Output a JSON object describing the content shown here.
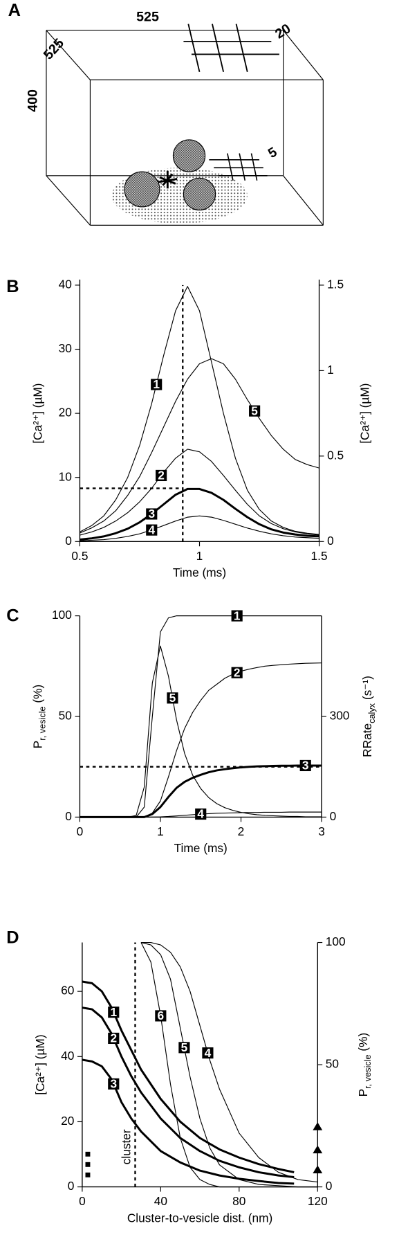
{
  "panel_a": {
    "letter": "A",
    "width_label": "525",
    "depth_label": "525",
    "height_label": "400",
    "grid_label": "20",
    "small_grid_label": "5"
  },
  "chart_data": [
    {
      "type": "line",
      "panel": "B",
      "x": [
        0.5,
        0.55,
        0.6,
        0.65,
        0.7,
        0.75,
        0.8,
        0.85,
        0.9,
        0.95,
        1,
        1.05,
        1.1,
        1.15,
        1.2,
        1.25,
        1.3,
        1.35,
        1.4,
        1.45,
        1.5
      ],
      "xlim": [
        0.5,
        1.5
      ],
      "xticks": [
        0.5,
        1,
        1.5
      ],
      "ylim": [
        0,
        40
      ],
      "yticks": [
        0,
        10,
        20,
        30,
        40
      ],
      "y2lim": [
        0,
        1.5
      ],
      "y2ticks": [
        0,
        0.5,
        1,
        1.5
      ],
      "xlabel": "Time (ms)",
      "ylabel": {
        "text": "[Ca²⁺] (µM)"
      },
      "y2label": {
        "text": "[Ca²⁺] (µM)"
      },
      "vline": 0.93,
      "hline": 8.3,
      "series": [
        {
          "name": "1",
          "color": "#000000",
          "width": 1,
          "values": [
            1.5,
            2.5,
            4,
            6.5,
            10,
            15,
            21.5,
            29,
            36,
            39.8,
            36,
            28,
            20,
            13,
            8,
            5,
            3.2,
            2.2,
            1.6,
            1.3,
            1.1
          ]
        },
        {
          "name": "2",
          "color": "#000000",
          "width": 1,
          "values": [
            1,
            1.5,
            2.2,
            3.2,
            4.5,
            6.2,
            8.3,
            10.8,
            13,
            14.4,
            14,
            12.5,
            10.3,
            8,
            5.8,
            4,
            2.8,
            2,
            1.5,
            1.2,
            1
          ]
        },
        {
          "name": "3",
          "color": "#000000",
          "width": 2.6,
          "values": [
            0.3,
            0.5,
            0.8,
            1.3,
            2,
            3,
            4.3,
            5.8,
            7.3,
            8.2,
            8.2,
            7.6,
            6.5,
            5.1,
            3.8,
            2.7,
            1.9,
            1.4,
            1.1,
            0.9,
            0.8
          ]
        },
        {
          "name": "4",
          "color": "#000000",
          "width": 1,
          "values": [
            0.1,
            0.2,
            0.3,
            0.5,
            0.8,
            1.2,
            1.8,
            2.5,
            3.2,
            3.8,
            4,
            3.8,
            3.3,
            2.7,
            2.1,
            1.6,
            1.2,
            0.9,
            0.7,
            0.6,
            0.5
          ]
        },
        {
          "name": "5",
          "color": "#000000",
          "width": 1,
          "axis": "y2",
          "values": [
            0.05,
            0.08,
            0.12,
            0.18,
            0.27,
            0.38,
            0.52,
            0.67,
            0.82,
            0.95,
            1.04,
            1.07,
            1.04,
            0.95,
            0.83,
            0.72,
            0.62,
            0.54,
            0.48,
            0.45,
            0.43
          ]
        }
      ]
    },
    {
      "type": "line",
      "panel": "C",
      "x": [
        0,
        0.1,
        0.2,
        0.3,
        0.4,
        0.5,
        0.6,
        0.7,
        0.8,
        0.9,
        1,
        1.1,
        1.2,
        1.3,
        1.4,
        1.5,
        1.6,
        1.7,
        1.8,
        1.9,
        2,
        2.1,
        2.2,
        2.3,
        2.4,
        2.5,
        2.6,
        2.7,
        2.8,
        2.9,
        3
      ],
      "xlim": [
        0,
        3
      ],
      "xticks": [
        0,
        1,
        2,
        3
      ],
      "ylim": [
        0,
        100
      ],
      "yticks": [
        0,
        50,
        100
      ],
      "y2lim": [
        0,
        600
      ],
      "y2ticks": [
        0,
        300
      ],
      "xlabel": "Time (ms)",
      "ylabel": {
        "text": "P",
        "sub": "r, vesicle",
        "after": " (%)"
      },
      "y2label": {
        "text": "RRate",
        "sub": "calyx",
        "after": " (s⁻¹)"
      },
      "hline": 25,
      "series": [
        {
          "name": "1",
          "color": "#000000",
          "width": 1,
          "values": [
            0,
            0,
            0,
            0,
            0,
            0,
            0,
            0,
            5,
            50,
            92,
            99,
            100,
            100,
            100,
            100,
            100,
            100,
            100,
            100,
            100,
            100,
            100,
            100,
            100,
            100,
            100,
            100,
            100,
            100,
            100
          ]
        },
        {
          "name": "2",
          "color": "#000000",
          "width": 1,
          "values": [
            0,
            0,
            0,
            0,
            0,
            0,
            0,
            0,
            0,
            2,
            8,
            20,
            33,
            44,
            52,
            58,
            63,
            66,
            69,
            71,
            72.5,
            73.5,
            74.3,
            75,
            75.4,
            75.7,
            76,
            76.2,
            76.4,
            76.5,
            76.6
          ]
        },
        {
          "name": "3",
          "color": "#000000",
          "width": 2.6,
          "values": [
            0,
            0,
            0,
            0,
            0,
            0,
            0,
            0,
            0,
            1.5,
            5,
            10,
            14.5,
            17.5,
            19.5,
            21,
            22.3,
            23.2,
            23.8,
            24.3,
            24.7,
            25,
            25.2,
            25.3,
            25.4,
            25.5,
            25.5,
            25.6,
            25.6,
            25.6,
            25.6
          ]
        },
        {
          "name": "4",
          "color": "#000000",
          "width": 1,
          "values": [
            0,
            0,
            0,
            0,
            0,
            0,
            0,
            0,
            0,
            0,
            0.1,
            0.3,
            0.6,
            0.9,
            1.2,
            1.5,
            1.7,
            1.9,
            2,
            2.1,
            2.2,
            2.3,
            2.3,
            2.4,
            2.4,
            2.4,
            2.5,
            2.5,
            2.5,
            2.5,
            2.5
          ]
        },
        {
          "name": "5",
          "color": "#000000",
          "width": 1,
          "axis": "y2",
          "values": [
            0,
            0,
            0,
            0,
            0,
            0,
            0,
            5,
            90,
            400,
            510,
            420,
            290,
            190,
            125,
            85,
            58,
            40,
            28,
            20,
            14,
            10,
            7,
            5,
            4,
            3,
            2,
            2,
            1,
            1,
            1
          ]
        }
      ]
    },
    {
      "type": "line",
      "panel": "D",
      "xlim": [
        0,
        120
      ],
      "xticks": [
        0,
        40,
        80,
        120
      ],
      "ylim": [
        0,
        75
      ],
      "yticks": [
        0,
        20,
        40,
        60
      ],
      "y2lim": [
        0,
        100
      ],
      "y2ticks": [
        0,
        50,
        100
      ],
      "xlabel": "Cluster-to-vesicle dist. (nm)",
      "ylabel": {
        "text": "[Ca²⁺] (µM)"
      },
      "y2label": {
        "text": "P",
        "sub": "r, vesicle",
        "after": " (%)"
      },
      "vline": 27,
      "vline_label": "cluster",
      "series": [
        {
          "name": "1",
          "color": "#000000",
          "width": 2.6,
          "x": [
            0,
            5,
            10,
            15,
            20,
            25,
            30,
            40,
            50,
            60,
            70,
            80,
            90,
            100,
            108
          ],
          "values": [
            63,
            62.5,
            60,
            55,
            48,
            42,
            36,
            27,
            20,
            15,
            11.5,
            9,
            7,
            5.5,
            4.5
          ]
        },
        {
          "name": "2",
          "color": "#000000",
          "width": 2.6,
          "x": [
            0,
            5,
            10,
            15,
            20,
            25,
            30,
            40,
            50,
            60,
            70,
            80,
            90,
            100,
            108
          ],
          "values": [
            55,
            54.5,
            52,
            47,
            40,
            34,
            29,
            21,
            15,
            11,
            8,
            6,
            4.5,
            3.5,
            3
          ]
        },
        {
          "name": "3",
          "color": "#000000",
          "width": 2.6,
          "x": [
            0,
            5,
            10,
            15,
            20,
            25,
            30,
            40,
            50,
            60,
            70,
            80,
            90,
            100,
            108
          ],
          "values": [
            39,
            38.5,
            37,
            33,
            26,
            21,
            17,
            11,
            7.5,
            5,
            3.5,
            2.5,
            1.8,
            1.2,
            1
          ]
        },
        {
          "name": "4",
          "color": "#000000",
          "width": 1,
          "axis": "y2",
          "x": [
            30,
            35,
            40,
            45,
            50,
            55,
            60,
            65,
            70,
            80,
            90,
            100,
            110,
            120
          ],
          "values": [
            100,
            100,
            99,
            96,
            90,
            80,
            66,
            52,
            40,
            22,
            12,
            6,
            3,
            2
          ]
        },
        {
          "name": "5",
          "color": "#000000",
          "width": 1,
          "axis": "y2",
          "x": [
            30,
            35,
            40,
            45,
            50,
            55,
            60,
            65,
            70,
            80,
            90,
            100,
            110,
            120
          ],
          "values": [
            100,
            99,
            95,
            85,
            65,
            45,
            28,
            16,
            9,
            3,
            1,
            0.5,
            0,
            0
          ]
        },
        {
          "name": "6",
          "color": "#000000",
          "width": 1,
          "axis": "y2",
          "x": [
            30,
            35,
            40,
            45,
            50,
            55,
            60,
            65,
            70,
            80,
            90,
            100,
            110,
            120
          ],
          "values": [
            100,
            92,
            70,
            42,
            20,
            8,
            3,
            1,
            0,
            0,
            0,
            0,
            0,
            0
          ]
        }
      ]
    }
  ]
}
